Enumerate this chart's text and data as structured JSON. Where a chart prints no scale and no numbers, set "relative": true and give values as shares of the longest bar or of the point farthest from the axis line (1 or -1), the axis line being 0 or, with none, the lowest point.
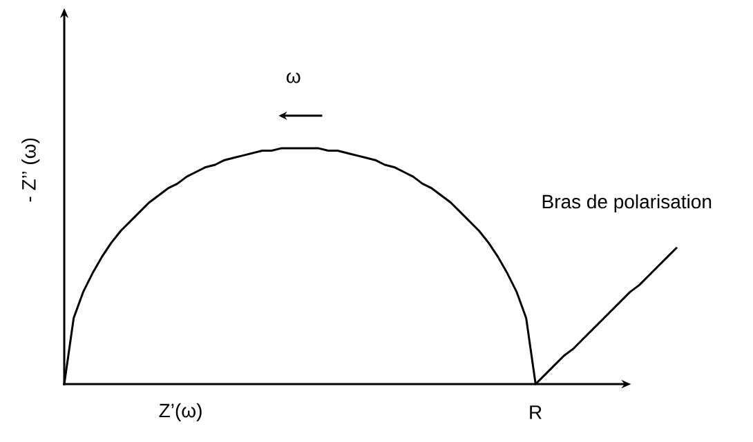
{
  "chart_data": {
    "type": "line",
    "relative": true,
    "xlabel": "Z’(ω)",
    "ylabel": "- Z’’ (ω)",
    "marker": "none",
    "line_style": "solid",
    "categories": [
      null,
      null,
      null,
      null,
      null,
      null,
      null,
      null,
      null,
      null,
      null,
      null,
      null,
      null,
      null,
      null,
      null,
      null,
      null,
      null,
      null,
      null,
      null,
      null,
      null,
      null,
      null,
      null,
      null,
      null,
      null,
      null,
      null,
      null,
      null,
      null,
      null,
      null,
      null,
      null,
      null,
      null,
      null,
      null,
      null,
      null,
      null,
      null,
      null,
      null,
      null,
      null,
      null,
      null,
      null,
      null,
      null,
      null,
      null,
      null,
      null,
      null,
      null,
      null,
      null,
      null
    ],
    "series": [
      {
        "color": "#000000",
        "values": [
          0,
          0.28,
          0.39,
          0.47,
          0.54,
          0.6,
          0.65,
          0.69,
          0.73,
          0.77,
          0.8,
          0.83,
          0.85,
          0.88,
          0.9,
          0.92,
          0.93,
          0.95,
          0.96,
          0.97,
          0.98,
          0.99,
          0.99,
          1,
          1,
          1,
          1,
          1,
          0.99,
          0.99,
          0.98,
          0.97,
          0.96,
          0.95,
          0.93,
          0.92,
          0.9,
          0.88,
          0.85,
          0.83,
          0.8,
          0.77,
          0.73,
          0.69,
          0.65,
          0.6,
          0.54,
          0.47,
          0.39,
          0.28,
          0,
          0.04,
          0.08,
          0.12,
          0.15,
          0.19,
          0.23,
          0.27,
          0.31,
          0.35,
          0.39,
          0.42,
          0.46,
          0.5,
          0.54,
          0.58
        ]
      }
    ],
    "annotations": [
      "ω",
      "Bras de polarisation",
      "R"
    ]
  }
}
